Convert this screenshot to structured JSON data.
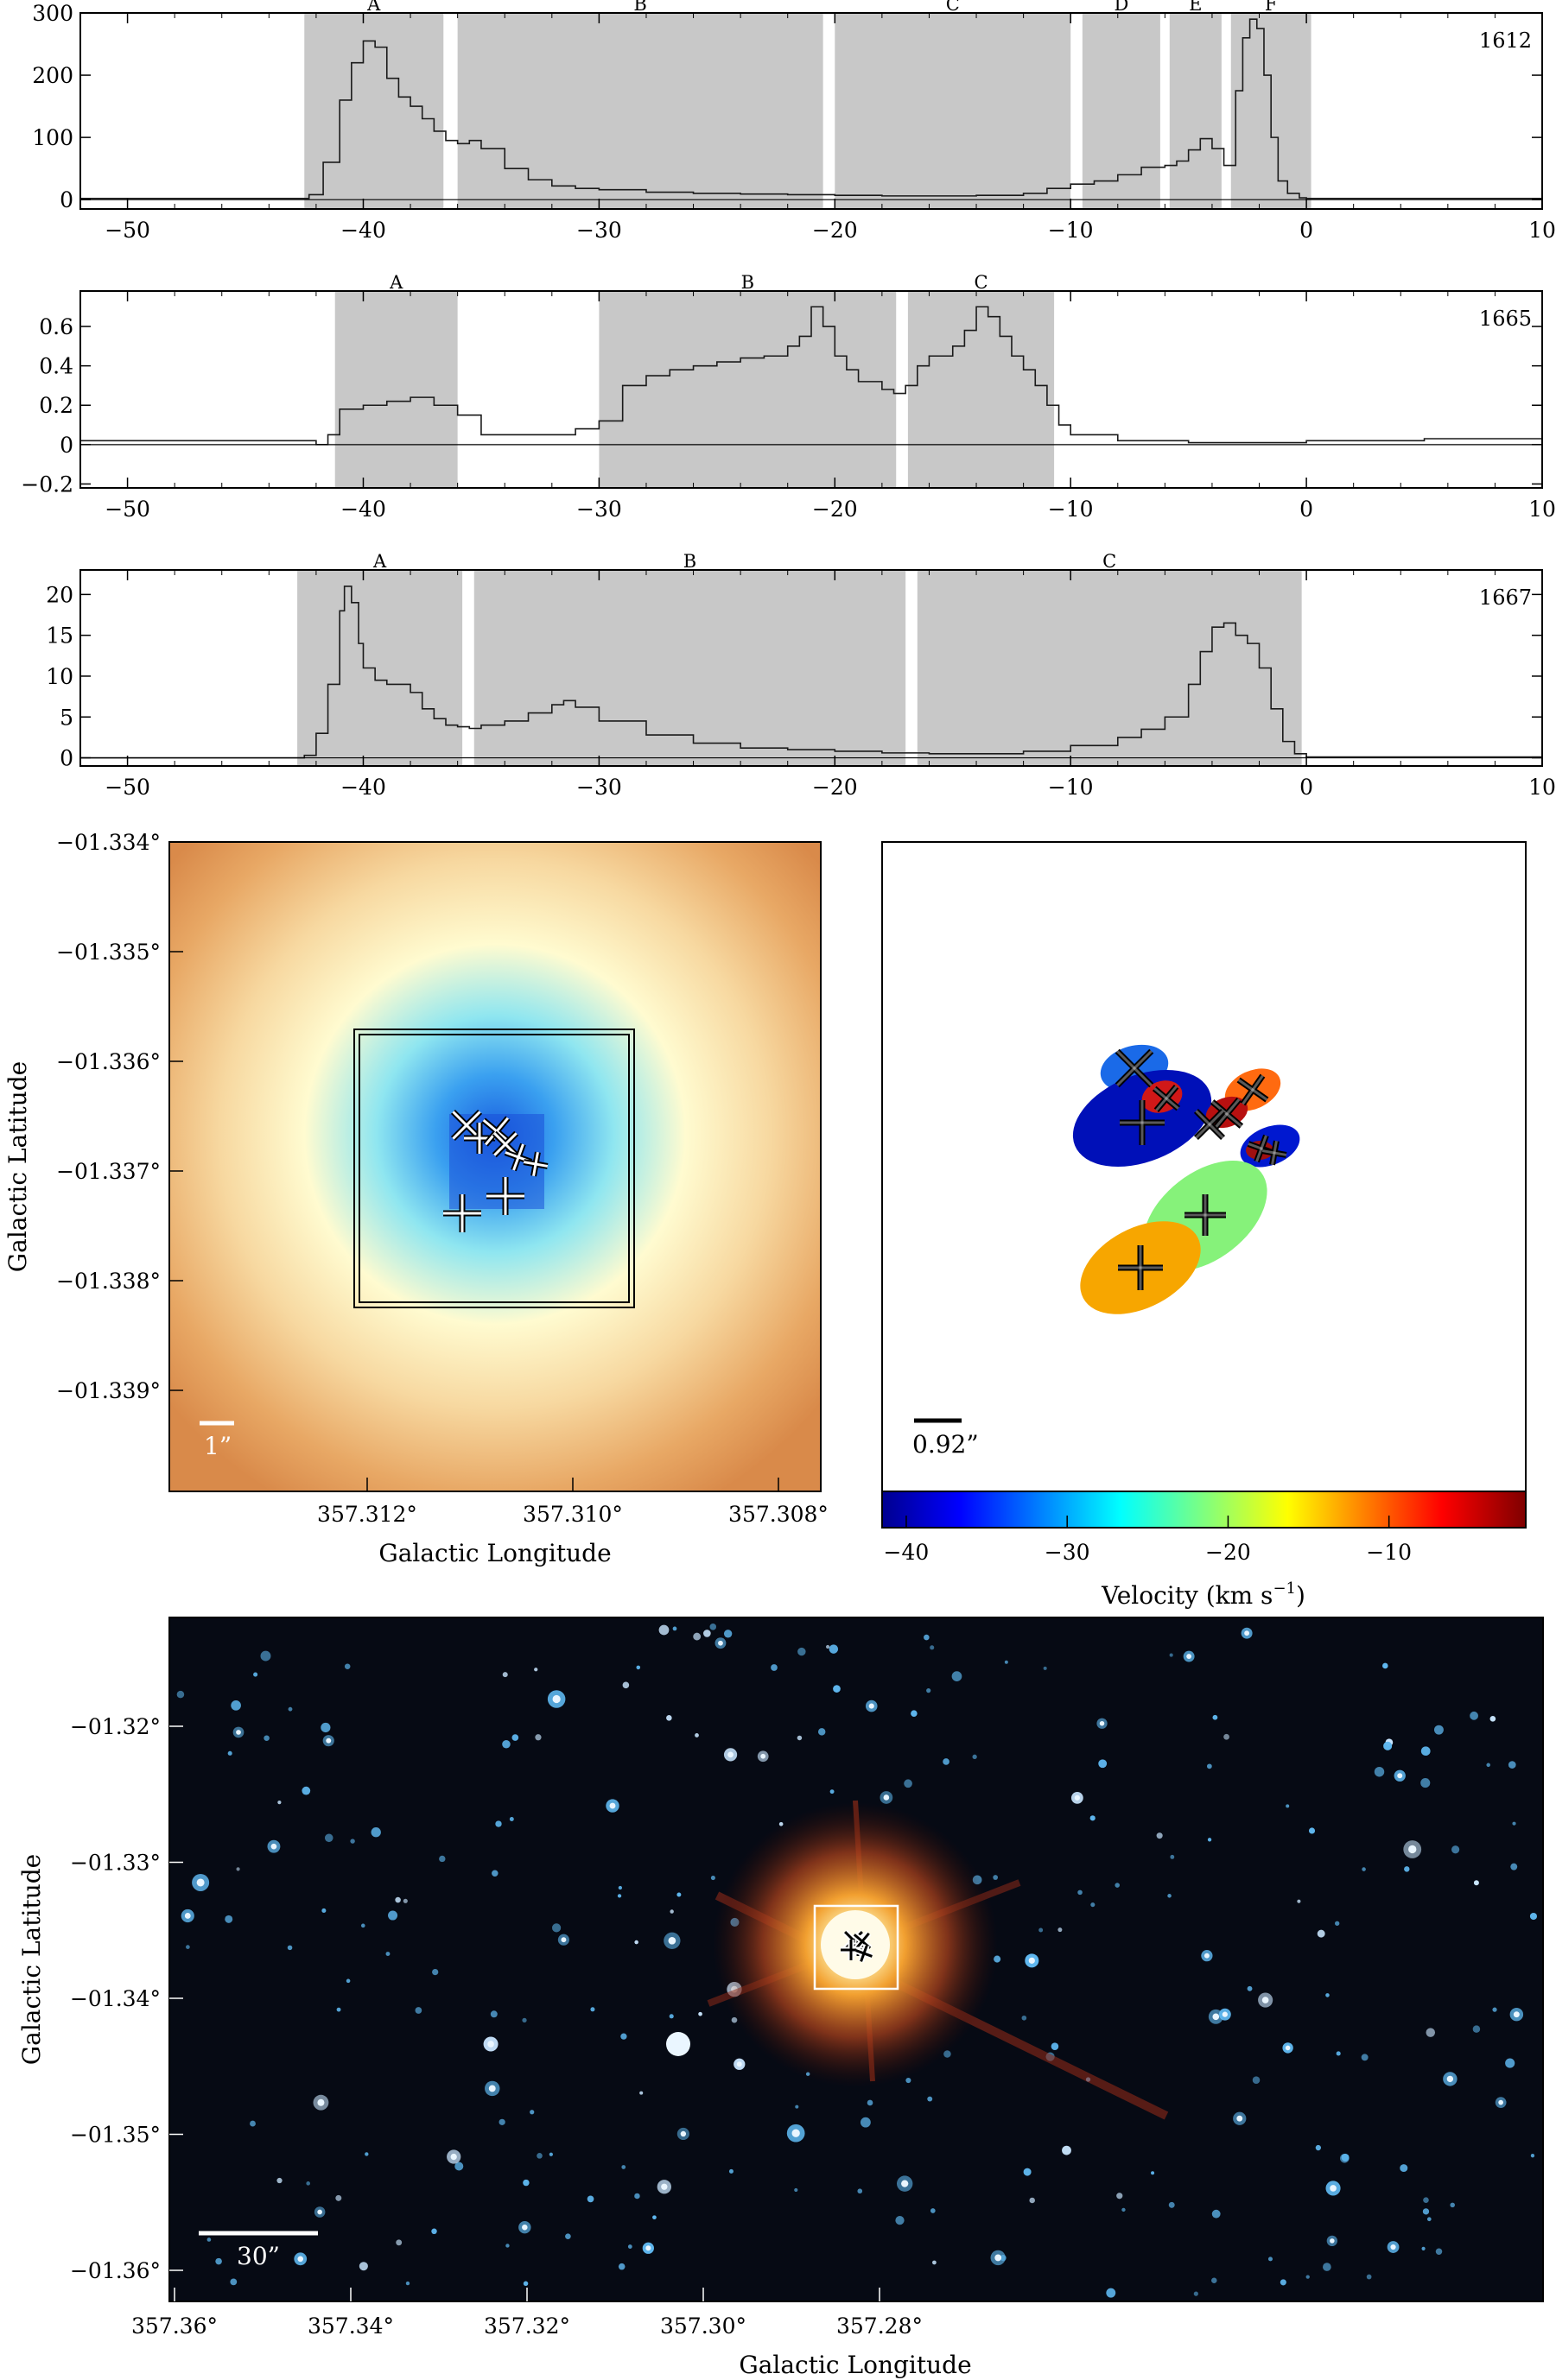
{
  "spectra": [
    {
      "freq_label": "1612",
      "xlim": [
        -52,
        10
      ],
      "ylim": [
        -15,
        300
      ],
      "xticks": [
        -50,
        -40,
        -30,
        -20,
        -10,
        0,
        10
      ],
      "yticks": [
        0,
        100,
        200,
        300
      ],
      "segments": [
        {
          "label": "A",
          "v0": -42.5,
          "v1": -36.6
        },
        {
          "label": "B",
          "v0": -36.0,
          "v1": -20.5
        },
        {
          "label": "C",
          "v0": -20.0,
          "v1": -10.0
        },
        {
          "label": "D",
          "v0": -9.5,
          "v1": -6.2
        },
        {
          "label": "E",
          "v0": -5.8,
          "v1": -3.6
        },
        {
          "label": "F",
          "v0": -3.2,
          "v1": 0.2
        }
      ],
      "chart_data": {
        "type": "line",
        "x": [
          -52,
          -43,
          -42.3,
          -41.7,
          -41,
          -40.5,
          -40,
          -39.5,
          -39,
          -38.5,
          -38,
          -37.5,
          -37,
          -36.5,
          -36,
          -35.5,
          -35,
          -34,
          -33,
          -32,
          -31,
          -30,
          -28,
          -26,
          -24,
          -22,
          -20,
          -18,
          -16,
          -14,
          -12,
          -11,
          -10,
          -9,
          -8,
          -7,
          -6,
          -5.5,
          -5,
          -4.5,
          -4,
          -3.5,
          -3,
          -2.7,
          -2.4,
          -2.1,
          -1.8,
          -1.5,
          -1.2,
          -0.8,
          -0.3,
          0,
          10
        ],
        "y": [
          2,
          2,
          8,
          60,
          160,
          220,
          255,
          245,
          195,
          165,
          150,
          130,
          110,
          95,
          90,
          95,
          82,
          50,
          32,
          22,
          18,
          16,
          12,
          10,
          9,
          8,
          7,
          6,
          6,
          7,
          10,
          18,
          25,
          30,
          40,
          52,
          55,
          62,
          80,
          98,
          82,
          55,
          175,
          260,
          290,
          275,
          200,
          100,
          30,
          10,
          3,
          2,
          2
        ],
        "xlim": [
          -52,
          10
        ],
        "ylim": [
          -15,
          300
        ]
      }
    },
    {
      "freq_label": "1665",
      "xlim": [
        -52,
        10
      ],
      "ylim": [
        -0.22,
        0.78
      ],
      "xticks": [
        -50,
        -40,
        -30,
        -20,
        -10,
        0,
        10
      ],
      "yticks": [
        -0.2,
        0,
        0.2,
        0.4,
        0.6
      ],
      "segments": [
        {
          "label": "A",
          "v0": -41.2,
          "v1": -36.0
        },
        {
          "label": "B",
          "v0": -30.0,
          "v1": -17.4
        },
        {
          "label": "C",
          "v0": -16.9,
          "v1": -10.7
        }
      ],
      "chart_data": {
        "type": "line",
        "x": [
          -52,
          -45,
          -42,
          -41.5,
          -41,
          -40,
          -39,
          -38,
          -37,
          -36,
          -35,
          -33,
          -31,
          -30,
          -29,
          -28,
          -27,
          -26,
          -25,
          -24,
          -23,
          -22,
          -21.5,
          -21,
          -20.5,
          -20,
          -19.5,
          -19,
          -18,
          -17.5,
          -17,
          -16.5,
          -16,
          -15,
          -14.5,
          -14,
          -13.5,
          -13,
          -12.5,
          -12,
          -11.5,
          -11,
          -10.5,
          -10,
          -8,
          -5,
          0,
          5,
          10
        ],
        "y": [
          0.02,
          0.02,
          0.0,
          0.05,
          0.18,
          0.2,
          0.22,
          0.24,
          0.2,
          0.15,
          0.05,
          0.05,
          0.08,
          0.12,
          0.3,
          0.35,
          0.38,
          0.4,
          0.42,
          0.44,
          0.45,
          0.5,
          0.55,
          0.7,
          0.6,
          0.45,
          0.38,
          0.32,
          0.28,
          0.26,
          0.3,
          0.4,
          0.45,
          0.5,
          0.58,
          0.7,
          0.65,
          0.55,
          0.45,
          0.38,
          0.3,
          0.2,
          0.1,
          0.05,
          0.02,
          0.01,
          0.02,
          0.03,
          0.01
        ],
        "xlim": [
          -52,
          10
        ],
        "ylim": [
          -0.22,
          0.78
        ]
      }
    },
    {
      "freq_label": "1667",
      "xlim": [
        -52,
        10
      ],
      "ylim": [
        -1,
        23
      ],
      "xticks": [
        -50,
        -40,
        -30,
        -20,
        -10,
        0,
        10
      ],
      "yticks": [
        0,
        5,
        10,
        15,
        20
      ],
      "segments": [
        {
          "label": "A",
          "v0": -42.8,
          "v1": -35.8
        },
        {
          "label": "B",
          "v0": -35.3,
          "v1": -17.0
        },
        {
          "label": "C",
          "v0": -16.5,
          "v1": -0.2
        }
      ],
      "chart_data": {
        "type": "line",
        "x": [
          -52,
          -43,
          -42.5,
          -42,
          -41.5,
          -41,
          -40.8,
          -40.5,
          -40.2,
          -40,
          -39.5,
          -39,
          -38.5,
          -38,
          -37.5,
          -37,
          -36.5,
          -36,
          -35.5,
          -35,
          -34,
          -33,
          -32,
          -31.5,
          -31,
          -30,
          -28,
          -26,
          -24,
          -22,
          -20,
          -18,
          -16,
          -14,
          -12,
          -10,
          -8,
          -7,
          -6,
          -5,
          -4.5,
          -4,
          -3.5,
          -3,
          -2.5,
          -2,
          -1.5,
          -1,
          -0.5,
          0,
          10
        ],
        "y": [
          0,
          0,
          0.3,
          3,
          9,
          18,
          21,
          19,
          14,
          11,
          9.5,
          9,
          9,
          8,
          6,
          4.8,
          4,
          3.8,
          3.6,
          4,
          4.5,
          5.5,
          6.5,
          7,
          6.2,
          4.5,
          2.8,
          1.8,
          1.2,
          1,
          0.8,
          0.6,
          0.5,
          0.5,
          0.8,
          1.5,
          2.5,
          3.5,
          5,
          9,
          13,
          16,
          16.5,
          15,
          14,
          11,
          6,
          2,
          0.5,
          0.1,
          0
        ],
        "xlim": [
          -52,
          10
        ],
        "ylim": [
          -1,
          23
        ]
      }
    }
  ],
  "map_left": {
    "ylabel": "Galactic Latitude",
    "xlabel": "Galactic Longitude",
    "yticks": [
      "−01.334°",
      "−01.335°",
      "−01.336°",
      "−01.337°",
      "−01.338°",
      "−01.339°"
    ],
    "xticks": [
      "357.312°",
      "357.310°",
      "357.308°"
    ],
    "scalebar": "1”"
  },
  "map_right": {
    "scalebar": "0.92”",
    "colorbar_label": "Velocity (km s",
    "colorbar_label_sup": "−1",
    "colorbar_label_end": ")",
    "colorbar_ticks": [
      "−40",
      "−30",
      "−20",
      "−10"
    ],
    "colorbar_range": [
      -41.5,
      -1.5
    ]
  },
  "map_bottom": {
    "ylabel": "Galactic Latitude",
    "xlabel": "Galactic Longitude",
    "yticks": [
      "−01.32°",
      "−01.33°",
      "−01.34°",
      "−01.35°",
      "−01.36°"
    ],
    "xticks": [
      "357.36°",
      "357.34°",
      "357.32°",
      "357.30°",
      "357.28°"
    ],
    "scalebar": "30”"
  },
  "colors": {
    "shade": "#c8c8c8",
    "trace": "#1a1a1a"
  }
}
